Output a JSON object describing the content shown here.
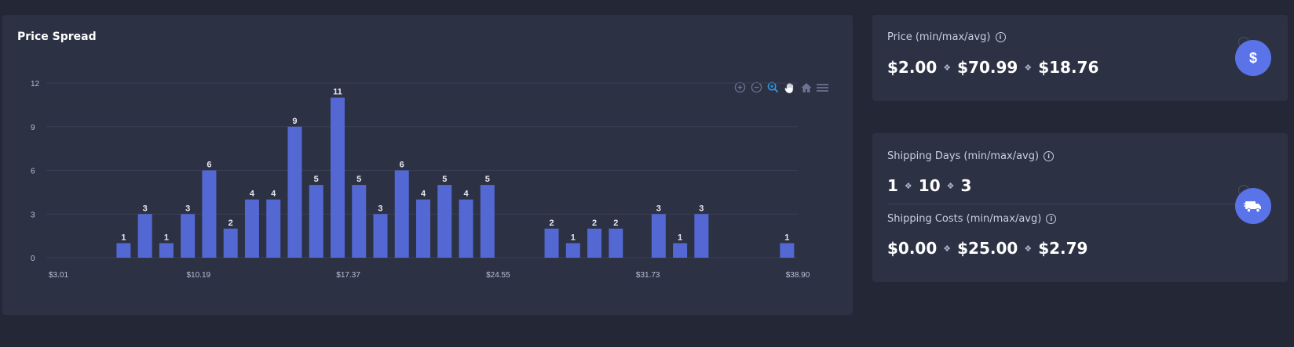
{
  "chart_title": "Price Spread",
  "toolbar": [
    "zoom-in-icon",
    "zoom-out-icon",
    "zoom-select-icon",
    "pan-hand-icon",
    "home-icon",
    "menu-icon"
  ],
  "colors": {
    "bar": "#5468d4",
    "background": "#2c3144",
    "page": "#242836",
    "grid": "#3a4054",
    "accent": "#5b73e8",
    "active_tool": "#2e9ce6"
  },
  "chart_data": {
    "type": "bar",
    "title": "Price Spread",
    "xlabel": "",
    "ylabel": "",
    "ylim": [
      0,
      12
    ],
    "y_ticks": [
      0,
      3,
      6,
      9,
      12
    ],
    "x_tick_labels": [
      "$3.01",
      "$10.19",
      "$17.37",
      "$24.55",
      "$31.73",
      "$38.90"
    ],
    "grid": true,
    "bin_count": 35,
    "values": [
      0,
      0,
      0,
      1,
      3,
      1,
      3,
      6,
      2,
      4,
      4,
      9,
      5,
      11,
      5,
      3,
      6,
      4,
      5,
      4,
      5,
      0,
      0,
      2,
      1,
      2,
      2,
      0,
      3,
      1,
      3,
      0,
      0,
      0,
      1
    ]
  },
  "price": {
    "label": "Price (min/max/avg)",
    "min": "$2.00",
    "max": "$70.99",
    "avg": "$18.76",
    "icon": "dollar-icon"
  },
  "shipping_days": {
    "label": "Shipping Days (min/max/avg)",
    "min": "1",
    "max": "10",
    "avg": "3"
  },
  "shipping_costs": {
    "label": "Shipping Costs (min/max/avg)",
    "min": "$0.00",
    "max": "$25.00",
    "avg": "$2.79",
    "icon": "truck-icon"
  }
}
